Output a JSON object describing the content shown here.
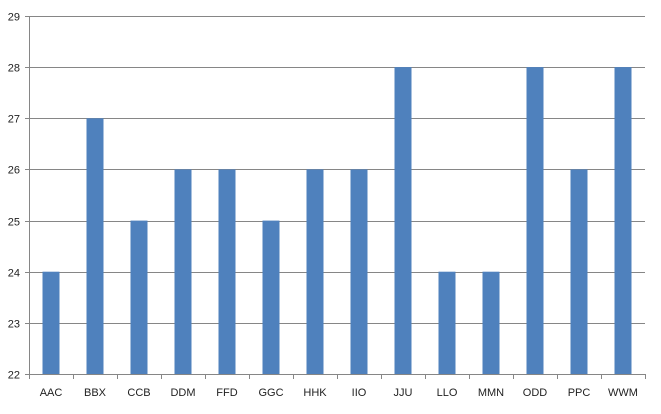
{
  "chart_data": {
    "type": "bar",
    "title": "",
    "xlabel": "",
    "ylabel": "",
    "categories": [
      "AAC",
      "BBX",
      "CCB",
      "DDM",
      "FFD",
      "GGC",
      "HHK",
      "IIO",
      "JJU",
      "LLO",
      "MMN",
      "ODD",
      "PPC",
      "WWM"
    ],
    "values": [
      24,
      27,
      25,
      26,
      26,
      25,
      26,
      26,
      28,
      24,
      24,
      28,
      26,
      28
    ],
    "ylim": [
      22,
      29
    ],
    "yticks": [
      "22",
      "23",
      "24",
      "25",
      "26",
      "27",
      "28",
      "29"
    ],
    "grid": true,
    "legend": "none",
    "colors": {
      "bar": "#4f81bd",
      "grid": "#868686",
      "axis": "#868686"
    }
  }
}
